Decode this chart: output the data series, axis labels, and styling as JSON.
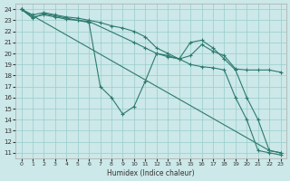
{
  "background_color": "#cce8e8",
  "grid_color": "#99cccc",
  "line_color": "#2d7a6e",
  "xlabel": "Humidex (Indice chaleur)",
  "xlim": [
    -0.5,
    23.5
  ],
  "ylim": [
    10.5,
    24.5
  ],
  "xticks": [
    0,
    1,
    2,
    3,
    4,
    5,
    6,
    7,
    8,
    9,
    10,
    11,
    12,
    13,
    14,
    15,
    16,
    17,
    18,
    19,
    20,
    21,
    22,
    23
  ],
  "yticks": [
    11,
    12,
    13,
    14,
    15,
    16,
    17,
    18,
    19,
    20,
    21,
    22,
    23,
    24
  ],
  "lines": [
    {
      "x": [
        0,
        22,
        23
      ],
      "y": [
        24,
        11.2,
        11.0
      ]
    },
    {
      "x": [
        0,
        1,
        2,
        3,
        4,
        5,
        6,
        7,
        8,
        9,
        10,
        11,
        12,
        13,
        14,
        15,
        16,
        17,
        18,
        19,
        20,
        21,
        22,
        23
      ],
      "y": [
        24,
        23.3,
        23.5,
        23.3,
        23.1,
        23.0,
        22.8,
        17.0,
        16.0,
        14.5,
        15.2,
        17.5,
        20.0,
        19.8,
        19.5,
        19.0,
        18.8,
        18.7,
        18.5,
        16.0,
        14.0,
        11.2,
        11.0,
        10.8
      ]
    },
    {
      "x": [
        0,
        1,
        2,
        3,
        4,
        5,
        6,
        7,
        8,
        9,
        10,
        11,
        12,
        13,
        14,
        15,
        16,
        17,
        18,
        19,
        20,
        21,
        22,
        23
      ],
      "y": [
        24,
        23.5,
        23.7,
        23.5,
        23.3,
        23.2,
        23.0,
        22.8,
        22.5,
        22.3,
        22.0,
        21.5,
        20.5,
        20.0,
        19.5,
        21.0,
        21.2,
        20.5,
        19.5,
        18.5,
        16.0,
        14.0,
        11.2,
        11.0
      ]
    },
    {
      "x": [
        0,
        1,
        2,
        5,
        6,
        10,
        11,
        12,
        13,
        14,
        15,
        16,
        17,
        18,
        19,
        20,
        21,
        22,
        23
      ],
      "y": [
        24,
        23.2,
        23.6,
        23.0,
        22.9,
        21.0,
        20.5,
        20.0,
        19.7,
        19.5,
        19.8,
        20.8,
        20.2,
        19.8,
        18.6,
        18.5,
        18.5,
        18.5,
        18.3
      ]
    }
  ]
}
